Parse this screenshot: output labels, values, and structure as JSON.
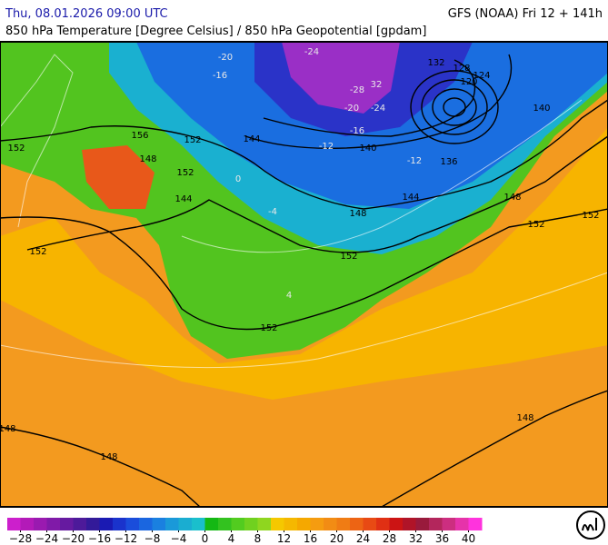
{
  "header": {
    "datetime": "Thu, 08.01.2026 09:00 UTC",
    "model": "GFS (NOAA) Fri 12 + 141h",
    "subtitle": "850 hPa Temperature [Degree Celsius] / 850 hPa Geopotential [gpdam]"
  },
  "geopotential_labels": [
    152,
    152,
    148,
    148,
    152,
    152,
    148,
    144,
    148,
    152,
    152,
    148,
    140,
    136,
    144,
    152,
    156,
    148,
    152,
    144,
    132,
    128,
    124,
    120,
    140
  ],
  "temperature_labels": [
    -24,
    -28,
    -20,
    -24,
    -16,
    -12,
    -12,
    -20,
    -16,
    0,
    4,
    -4,
    32
  ],
  "colorbar": {
    "lim": [
      -30,
      42
    ],
    "colors": [
      "#cc1fcc",
      "#b31ab8",
      "#9a1ab0",
      "#801aa8",
      "#661aa0",
      "#4d1a9a",
      "#331a99",
      "#1a1ab3",
      "#1a33cc",
      "#1a4ddb",
      "#1a66e0",
      "#1a80e0",
      "#1a99d9",
      "#1aadd1",
      "#1abfcc",
      "#14b814",
      "#33c21f",
      "#52cc1f",
      "#70d11f",
      "#8fd61f",
      "#f5c800",
      "#f5b800",
      "#f5a800",
      "#f59c10",
      "#f28c14",
      "#f07c14",
      "#ed6414",
      "#e84a14",
      "#e03014",
      "#cc1414",
      "#b01428",
      "#991a3c",
      "#b3265c",
      "#cc2e80",
      "#e633aa",
      "#ff33dd"
    ],
    "ticks": [
      {
        "value": -28,
        "label": "−28"
      },
      {
        "value": -24,
        "label": "−24"
      },
      {
        "value": -20,
        "label": "−20"
      },
      {
        "value": -16,
        "label": "−16"
      },
      {
        "value": -12,
        "label": "−12"
      },
      {
        "value": -8,
        "label": "−8"
      },
      {
        "value": -4,
        "label": "−4"
      },
      0,
      4,
      8,
      12,
      16,
      20,
      24,
      28,
      32,
      36,
      40
    ]
  }
}
